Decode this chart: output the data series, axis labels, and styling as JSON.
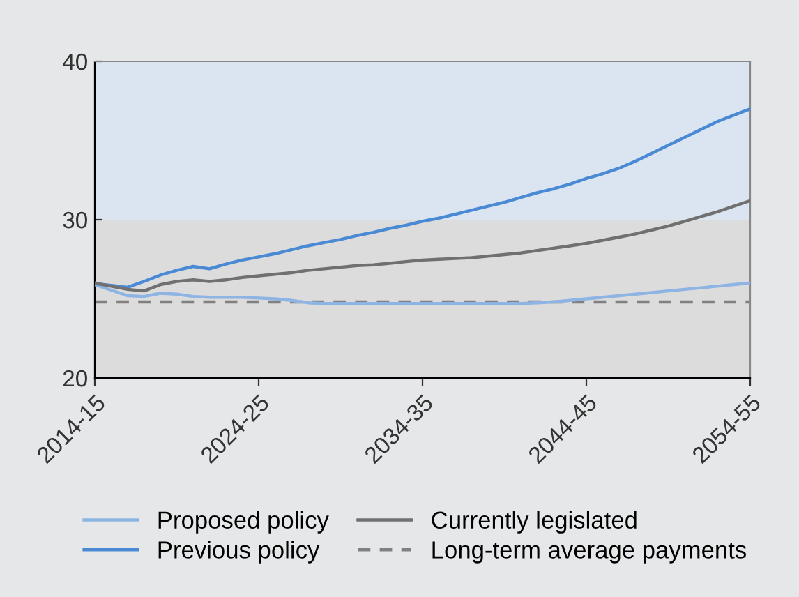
{
  "chart_data": {
    "type": "line",
    "categories": [
      "2014-15",
      null,
      null,
      null,
      null,
      null,
      null,
      null,
      null,
      null,
      "2024-25",
      null,
      null,
      null,
      null,
      null,
      null,
      null,
      null,
      null,
      "2034-35",
      null,
      null,
      null,
      null,
      null,
      null,
      null,
      null,
      null,
      "2044-45",
      null,
      null,
      null,
      null,
      null,
      null,
      null,
      null,
      null,
      "2054-55"
    ],
    "series": [
      {
        "name": "Proposed policy",
        "color": "#8db4e2",
        "values": [
          25.9,
          25.55,
          25.2,
          25.15,
          25.35,
          25.3,
          25.15,
          25.1,
          25.1,
          25.1,
          25.05,
          25.0,
          24.9,
          24.75,
          24.7,
          24.7,
          24.7,
          24.7,
          24.7,
          24.7,
          24.7,
          24.7,
          24.7,
          24.7,
          24.7,
          24.7,
          24.7,
          24.75,
          24.8,
          24.9,
          25.0,
          25.1,
          25.2,
          25.3,
          25.4,
          25.5,
          25.6,
          25.7,
          25.8,
          25.9,
          26.0
        ]
      },
      {
        "name": "Previous policy",
        "color": "#4a8ad4",
        "values": [
          25.96,
          25.85,
          25.73,
          26.1,
          26.5,
          26.8,
          27.05,
          26.9,
          27.2,
          27.45,
          27.65,
          27.85,
          28.1,
          28.35,
          28.55,
          28.75,
          29.0,
          29.2,
          29.45,
          29.65,
          29.9,
          30.1,
          30.35,
          30.6,
          30.85,
          31.1,
          31.4,
          31.7,
          31.95,
          32.25,
          32.6,
          32.9,
          33.25,
          33.7,
          34.2,
          34.7,
          35.2,
          35.7,
          36.2,
          36.6,
          37.0
        ]
      },
      {
        "name": "Currently legislated",
        "color": "#707070",
        "values": [
          26.0,
          25.8,
          25.6,
          25.5,
          25.9,
          26.1,
          26.2,
          26.1,
          26.2,
          26.35,
          26.45,
          26.55,
          26.65,
          26.8,
          26.9,
          27.0,
          27.1,
          27.15,
          27.25,
          27.35,
          27.45,
          27.5,
          27.55,
          27.6,
          27.7,
          27.8,
          27.9,
          28.05,
          28.2,
          28.35,
          28.5,
          28.7,
          28.9,
          29.1,
          29.35,
          29.6,
          29.9,
          30.2,
          30.5,
          30.85,
          31.2
        ]
      }
    ],
    "ref_lines": [
      {
        "axis": "y",
        "value": 24.8,
        "label": "Long-term average payments",
        "color": "#808080",
        "line_style": "dashed"
      }
    ],
    "bands": [
      {
        "axis": "y",
        "from": 30,
        "to": 40,
        "color": "#dbe5f2"
      },
      {
        "axis": "y",
        "from": 20,
        "to": 30,
        "color": "#dcdcdd"
      }
    ],
    "ylim": [
      20,
      40
    ],
    "yticks": [
      20,
      30,
      40
    ],
    "grid": false,
    "legend": "bottom",
    "line_style": "solid",
    "marker": "none"
  }
}
